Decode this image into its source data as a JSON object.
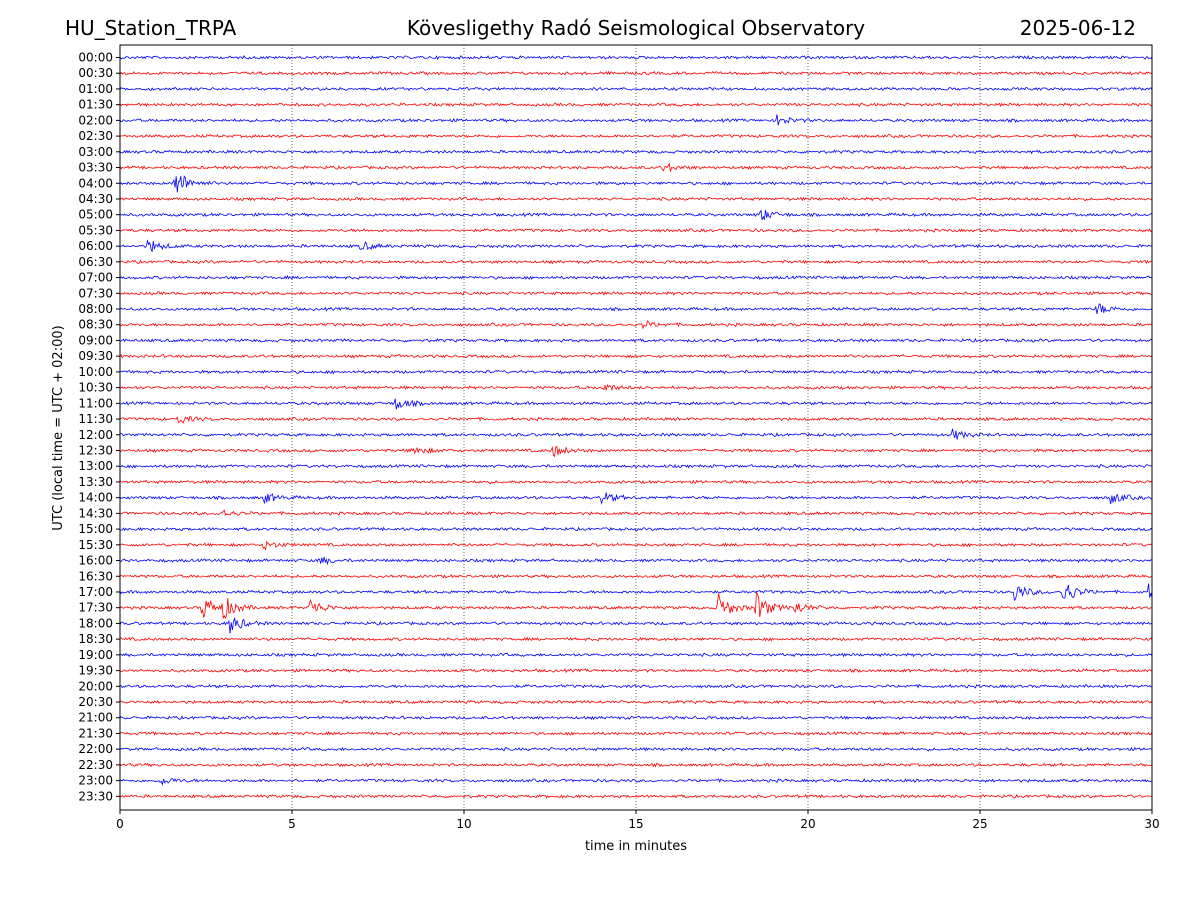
{
  "header": {
    "station": "HU_Station_TRPA",
    "observatory": "Kövesligethy Radó Seismological Observatory",
    "date": "2025-06-12"
  },
  "chart_data": {
    "type": "line",
    "xlabel": "time in minutes",
    "ylabel": "UTC (local time = UTC + 02:00)",
    "xlim": [
      0,
      30
    ],
    "x_ticks": [
      0,
      5,
      10,
      15,
      20,
      25,
      30
    ],
    "grid": "vertical dotted lines at each x tick",
    "colors": {
      "even_row": "#0000ff",
      "odd_row": "#ff0000"
    },
    "rows": [
      "00:00",
      "00:30",
      "01:00",
      "01:30",
      "02:00",
      "02:30",
      "03:00",
      "03:30",
      "04:00",
      "04:30",
      "05:00",
      "05:30",
      "06:00",
      "06:30",
      "07:00",
      "07:30",
      "08:00",
      "08:30",
      "09:00",
      "09:30",
      "10:00",
      "10:30",
      "11:00",
      "11:30",
      "12:00",
      "12:30",
      "13:00",
      "13:30",
      "14:00",
      "14:30",
      "15:00",
      "15:30",
      "16:00",
      "16:30",
      "17:00",
      "17:30",
      "18:00",
      "18:30",
      "19:00",
      "19:30",
      "20:00",
      "20:30",
      "21:00",
      "21:30",
      "22:00",
      "22:30",
      "23:00",
      "23:30"
    ],
    "events": [
      {
        "row": "04:00",
        "minute": 1.6,
        "amplitude": 1.0
      },
      {
        "row": "02:00",
        "minute": 19.1,
        "amplitude": 0.35
      },
      {
        "row": "03:30",
        "minute": 15.8,
        "amplitude": 0.35
      },
      {
        "row": "05:00",
        "minute": 18.6,
        "amplitude": 0.45
      },
      {
        "row": "06:00",
        "minute": 0.8,
        "amplitude": 0.5
      },
      {
        "row": "06:00",
        "minute": 7.0,
        "amplitude": 0.3
      },
      {
        "row": "08:00",
        "minute": 28.4,
        "amplitude": 0.4
      },
      {
        "row": "08:30",
        "minute": 15.2,
        "amplitude": 0.25
      },
      {
        "row": "10:30",
        "minute": 14.0,
        "amplitude": 0.3
      },
      {
        "row": "11:00",
        "minute": 8.0,
        "amplitude": 0.45
      },
      {
        "row": "11:30",
        "minute": 1.7,
        "amplitude": 0.3
      },
      {
        "row": "12:00",
        "minute": 24.2,
        "amplitude": 0.35
      },
      {
        "row": "12:30",
        "minute": 8.5,
        "amplitude": 0.35
      },
      {
        "row": "12:30",
        "minute": 12.6,
        "amplitude": 0.4
      },
      {
        "row": "14:00",
        "minute": 4.2,
        "amplitude": 0.35
      },
      {
        "row": "14:00",
        "minute": 14.0,
        "amplitude": 0.4
      },
      {
        "row": "14:00",
        "minute": 28.8,
        "amplitude": 0.4
      },
      {
        "row": "14:30",
        "minute": 2.9,
        "amplitude": 0.3
      },
      {
        "row": "15:30",
        "minute": 4.2,
        "amplitude": 0.3
      },
      {
        "row": "16:00",
        "minute": 5.8,
        "amplitude": 0.25
      },
      {
        "row": "17:00",
        "minute": 26.0,
        "amplitude": 0.6
      },
      {
        "row": "17:00",
        "minute": 27.4,
        "amplitude": 0.9
      },
      {
        "row": "17:00",
        "minute": 29.9,
        "amplitude": 0.5
      },
      {
        "row": "17:30",
        "minute": 2.4,
        "amplitude": 0.8
      },
      {
        "row": "17:30",
        "minute": 3.0,
        "amplitude": 0.7
      },
      {
        "row": "17:30",
        "minute": 5.5,
        "amplitude": 0.65
      },
      {
        "row": "17:30",
        "minute": 17.4,
        "amplitude": 0.9
      },
      {
        "row": "17:30",
        "minute": 18.5,
        "amplitude": 1.0
      },
      {
        "row": "17:30",
        "minute": 19.6,
        "amplitude": 0.45
      },
      {
        "row": "18:00",
        "minute": 3.2,
        "amplitude": 0.65
      },
      {
        "row": "23:00",
        "minute": 1.2,
        "amplitude": 0.25
      }
    ]
  }
}
